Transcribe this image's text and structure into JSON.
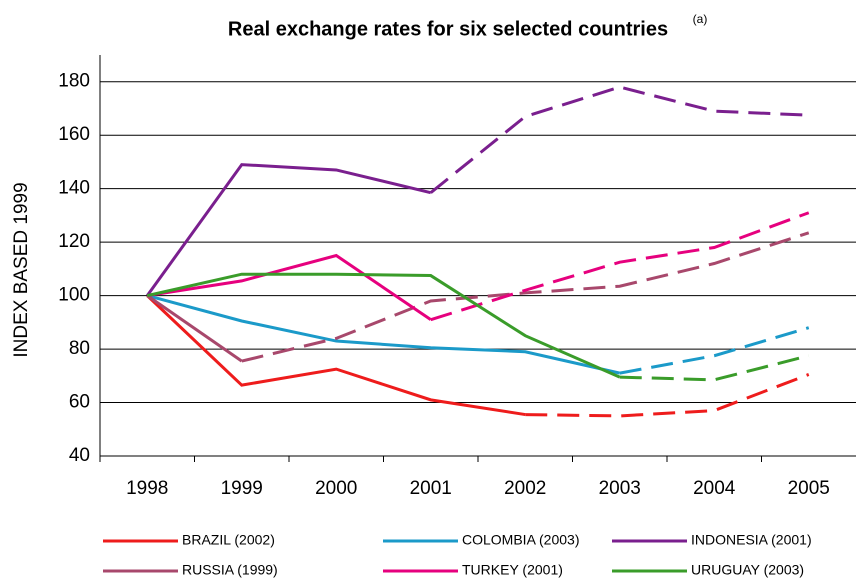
{
  "chart_data": {
    "type": "line",
    "title": "Real exchange rates for six selected countries",
    "title_note": "(a)",
    "y_label": "INDEX BASED 1999",
    "categories": [
      "1998",
      "1999",
      "2000",
      "2001",
      "2002",
      "2003",
      "2004",
      "2005"
    ],
    "ylim": [
      40,
      190
    ],
    "yticks": [
      40,
      60,
      80,
      100,
      120,
      140,
      160,
      180
    ],
    "grid": true,
    "series": [
      {
        "name": "BRAZIL (2002)",
        "color": "#ee1c1c",
        "dash_from": "2002",
        "values": [
          100,
          66.5,
          72.5,
          61,
          55.5,
          55,
          57,
          70.5
        ]
      },
      {
        "name": "COLOMBIA (2003)",
        "color": "#1b9ac9",
        "dash_from": "2003",
        "values": [
          100,
          90.5,
          83,
          80.5,
          79,
          71,
          77.5,
          88
        ]
      },
      {
        "name": "INDONESIA (2001)",
        "color": "#7a1f8e",
        "dash_from": "2001",
        "values": [
          100,
          149,
          147,
          138.5,
          167,
          178,
          169,
          167.5
        ]
      },
      {
        "name": "RUSSIA (1999)",
        "color": "#a8486c",
        "dash_from": "1999",
        "values": [
          100,
          75.5,
          84,
          98,
          101,
          103.5,
          112,
          123.5
        ]
      },
      {
        "name": "TURKEY (2001)",
        "color": "#e6007e",
        "dash_from": "2001",
        "values": [
          100,
          105.5,
          115,
          91,
          102,
          112.5,
          118,
          131
        ]
      },
      {
        "name": "URUGUAY (2003)",
        "color": "#3a9c2a",
        "dash_from": "2003",
        "values": [
          100,
          108,
          108,
          107.5,
          85,
          69.5,
          68.5,
          77.5
        ]
      }
    ]
  }
}
